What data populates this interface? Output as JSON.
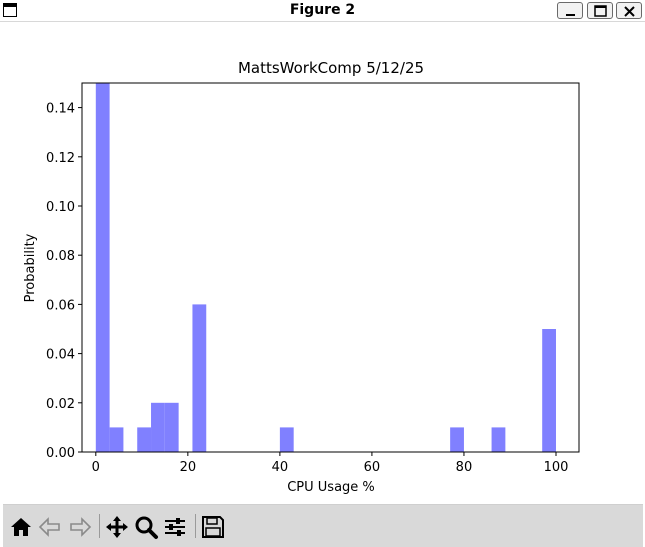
{
  "window": {
    "title": "Figure 2"
  },
  "toolbar": {
    "buttons": [
      {
        "name": "home-icon",
        "enabled": true
      },
      {
        "name": "back-arrow-icon",
        "enabled": false
      },
      {
        "name": "forward-arrow-icon",
        "enabled": false
      },
      {
        "name": "pan-icon",
        "enabled": true
      },
      {
        "name": "zoom-icon",
        "enabled": true
      },
      {
        "name": "configure-subplots-icon",
        "enabled": true
      },
      {
        "name": "save-icon",
        "enabled": true
      }
    ]
  },
  "colors": {
    "bar": "#8080ff",
    "axis": "#000000",
    "toolbar_bg": "#d9d9d9"
  },
  "chart_data": {
    "type": "bar",
    "title": "MattsWorkComp 5/12/25",
    "xlabel": "CPU Usage %",
    "ylabel": "Probability",
    "xlim": [
      -3,
      105
    ],
    "ylim": [
      0,
      0.15
    ],
    "bin_width": 3,
    "xticks": [
      0,
      20,
      40,
      60,
      80,
      100
    ],
    "ytick_labels": [
      "0.00",
      "0.02",
      "0.04",
      "0.06",
      "0.08",
      "0.10",
      "0.12",
      "0.14"
    ],
    "yticks": [
      0,
      0.02,
      0.04,
      0.06,
      0.08,
      0.1,
      0.12,
      0.14
    ],
    "bins": [
      {
        "x0": 0,
        "value": 0.15
      },
      {
        "x0": 3,
        "value": 0.01
      },
      {
        "x0": 9,
        "value": 0.01
      },
      {
        "x0": 12,
        "value": 0.02
      },
      {
        "x0": 15,
        "value": 0.02
      },
      {
        "x0": 21,
        "value": 0.06
      },
      {
        "x0": 40,
        "value": 0.01
      },
      {
        "x0": 77,
        "value": 0.01
      },
      {
        "x0": 86,
        "value": 0.01
      },
      {
        "x0": 97,
        "value": 0.05
      }
    ],
    "grid": false
  }
}
